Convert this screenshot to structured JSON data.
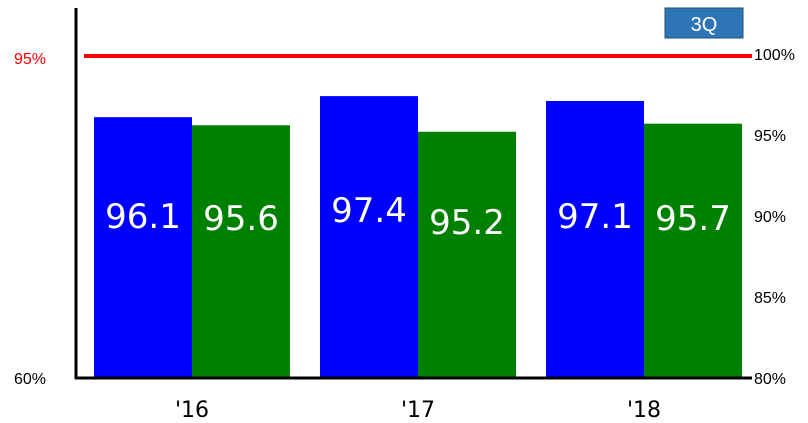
{
  "chart_data": {
    "type": "bar",
    "categories": [
      "'16",
      "'17",
      "'18"
    ],
    "series": [
      {
        "values": [
          96.1,
          97.4,
          97.1
        ],
        "color": "#0000ff"
      },
      {
        "values": [
          95.6,
          95.2,
          95.7
        ],
        "color": "#008000"
      }
    ],
    "left_axis": {
      "tick_labels": [
        "60%",
        "95%"
      ],
      "ticks": [
        60,
        95
      ],
      "ylim": [
        60,
        100
      ]
    },
    "right_axis": {
      "tick_labels": [
        "80%",
        "85%",
        "90%",
        "95%",
        "100%"
      ],
      "ticks": [
        80,
        85,
        90,
        95,
        100
      ],
      "ylim": [
        80,
        100
      ]
    },
    "reference_line": {
      "value": 95,
      "label": "95%",
      "color": "#ff0000"
    },
    "badge": {
      "text": "3Q",
      "color": "#2e75b6"
    },
    "grid": false,
    "legend": "none"
  }
}
